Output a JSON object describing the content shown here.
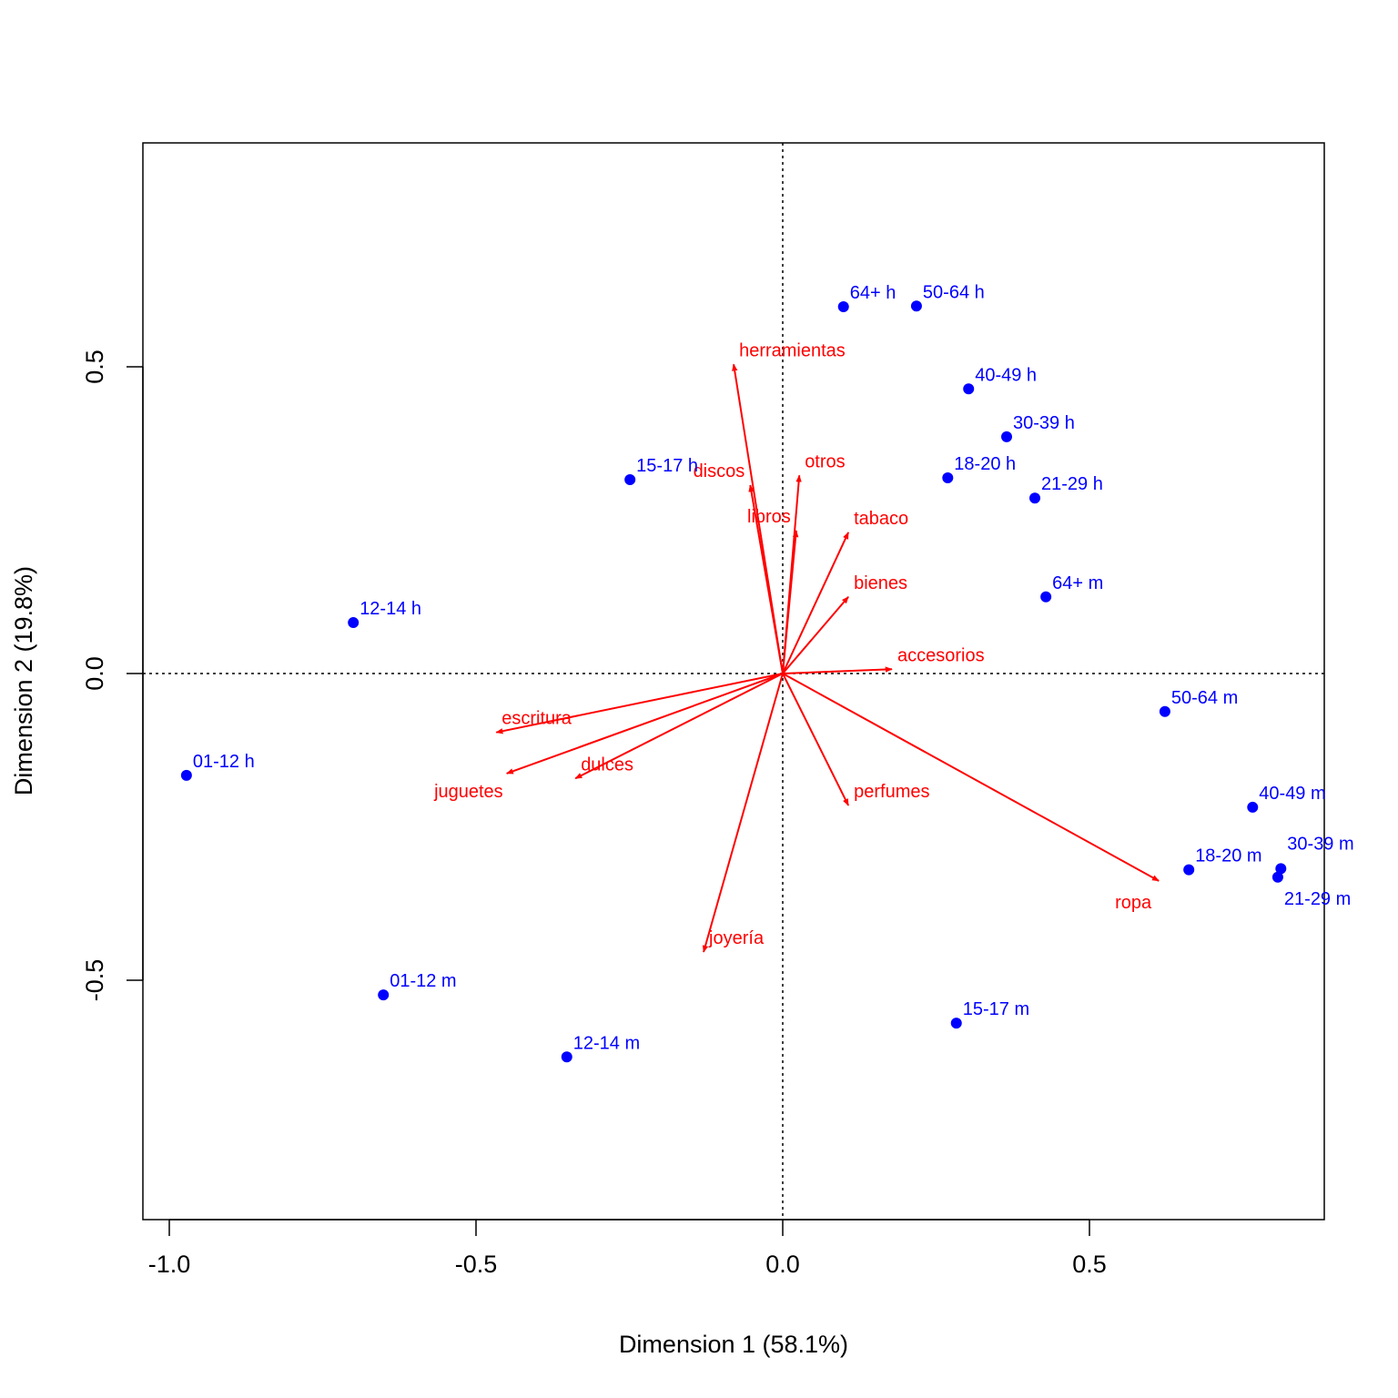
{
  "chart_data": {
    "type": "scatter",
    "title": "",
    "xlabel": "Dimension 1 (58.1%)",
    "ylabel": "Dimension 2 (19.8%)",
    "xlim": [
      -1.043,
      0.883
    ],
    "ylim": [
      -0.89,
      0.865
    ],
    "xticks": [
      -1.0,
      -0.5,
      0.0,
      0.5
    ],
    "xtick_labels": [
      "-1.0",
      "-0.5",
      "0.0",
      "0.5"
    ],
    "yticks": [
      -0.5,
      0.0,
      0.5
    ],
    "ytick_labels": [
      "-0.5",
      "0.0",
      "0.5"
    ],
    "grid": false,
    "reference_lines": {
      "x": 0,
      "y": 0,
      "style": "dotted"
    },
    "colors": {
      "points": "#0000ff",
      "arrows": "#ff0000"
    },
    "points": [
      {
        "label": "64+ h",
        "x": 0.099,
        "y": 0.598
      },
      {
        "label": "50-64 h",
        "x": 0.218,
        "y": 0.599
      },
      {
        "label": "40-49 h",
        "x": 0.303,
        "y": 0.464
      },
      {
        "label": "30-39 h",
        "x": 0.365,
        "y": 0.386
      },
      {
        "label": "18-20 h",
        "x": 0.269,
        "y": 0.319
      },
      {
        "label": "21-29 h",
        "x": 0.411,
        "y": 0.286
      },
      {
        "label": "15-17 h",
        "x": -0.249,
        "y": 0.316
      },
      {
        "label": "12-14 h",
        "x": -0.7,
        "y": 0.083
      },
      {
        "label": "01-12 h",
        "x": -0.972,
        "y": -0.166
      },
      {
        "label": "64+ m",
        "x": 0.429,
        "y": 0.125
      },
      {
        "label": "50-64 m",
        "x": 0.623,
        "y": -0.062
      },
      {
        "label": "40-49 m",
        "x": 0.766,
        "y": -0.218
      },
      {
        "label": "30-39 m",
        "x": 0.812,
        "y": -0.318
      },
      {
        "label": "21-29 m",
        "x": 0.807,
        "y": -0.332
      },
      {
        "label": "18-20 m",
        "x": 0.662,
        "y": -0.32
      },
      {
        "label": "15-17 m",
        "x": 0.283,
        "y": -0.57
      },
      {
        "label": "12-14 m",
        "x": -0.352,
        "y": -0.625
      },
      {
        "label": "01-12 m",
        "x": -0.651,
        "y": -0.524
      }
    ],
    "arrows": [
      {
        "label": "herramientas",
        "x": -0.08,
        "y": 0.504
      },
      {
        "label": "discos",
        "x": -0.053,
        "y": 0.307
      },
      {
        "label": "otros",
        "x": 0.027,
        "y": 0.323
      },
      {
        "label": "libros",
        "x": 0.022,
        "y": 0.233
      },
      {
        "label": "tabaco",
        "x": 0.107,
        "y": 0.23
      },
      {
        "label": "bienes",
        "x": 0.107,
        "y": 0.125
      },
      {
        "label": "accesorios",
        "x": 0.178,
        "y": 0.007
      },
      {
        "label": "perfumes",
        "x": 0.107,
        "y": -0.215
      },
      {
        "label": "ropa",
        "x": 0.613,
        "y": -0.338
      },
      {
        "label": "joyería",
        "x": -0.129,
        "y": -0.454
      },
      {
        "label": "dulces",
        "x": -0.338,
        "y": -0.171
      },
      {
        "label": "juguetes",
        "x": -0.45,
        "y": -0.163
      },
      {
        "label": "escritura",
        "x": -0.467,
        "y": -0.096
      }
    ]
  }
}
